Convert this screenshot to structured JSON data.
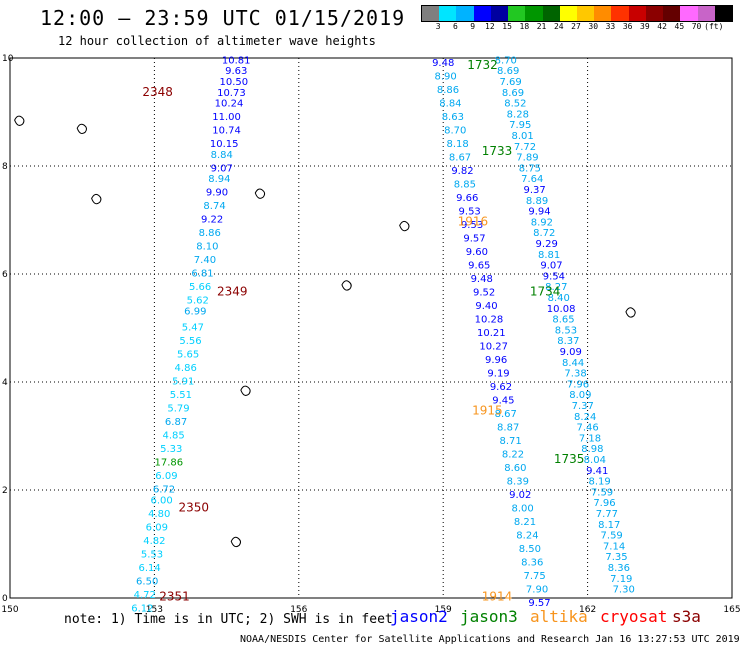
{
  "header": {
    "title": "12:00 — 23:59 UTC 01/15/2019",
    "subtitle": "12 hour collection of altimeter wave heights"
  },
  "colorbar": {
    "colors": [
      "#7f7f7f",
      "#00e5ff",
      "#00b3ff",
      "#0000ff",
      "#0000a0",
      "#22c822",
      "#009600",
      "#006400",
      "#ffff00",
      "#ffc800",
      "#ff8c00",
      "#ff3200",
      "#c80000",
      "#8b0000",
      "#640000",
      "#ff69ff",
      "#c864c8",
      "#000000"
    ],
    "labels": [
      "3",
      "6",
      "9",
      "12",
      "15",
      "18",
      "21",
      "24",
      "27",
      "30",
      "33",
      "36",
      "39",
      "42",
      "45",
      "70",
      "(ft)"
    ]
  },
  "axes": {
    "x_ticks": [
      "150",
      "153",
      "156",
      "159",
      "162",
      "165"
    ],
    "y_ticks": [
      "0",
      "2",
      "4",
      "6",
      "8",
      "10"
    ]
  },
  "time_labels": [
    {
      "text": "2348",
      "color": "#8b0000",
      "lon": 152.75,
      "lat": 9.3
    },
    {
      "text": "2349",
      "color": "#8b0000",
      "lon": 154.3,
      "lat": 5.6
    },
    {
      "text": "2350",
      "color": "#8b0000",
      "lon": 153.5,
      "lat": 1.6
    },
    {
      "text": "2351",
      "color": "#8b0000",
      "lon": 153.1,
      "lat": -0.05
    },
    {
      "text": "1732",
      "color": "#008000",
      "lon": 159.5,
      "lat": 9.8
    },
    {
      "text": "1733",
      "color": "#008000",
      "lon": 159.8,
      "lat": 8.2
    },
    {
      "text": "1734",
      "color": "#008000",
      "lon": 160.8,
      "lat": 5.6
    },
    {
      "text": "1735",
      "color": "#008000",
      "lon": 161.3,
      "lat": 2.5
    },
    {
      "text": "1916",
      "color": "#f7941d",
      "lon": 159.3,
      "lat": 6.9
    },
    {
      "text": "1915",
      "color": "#f7941d",
      "lon": 159.6,
      "lat": 3.4
    },
    {
      "text": "1914",
      "color": "#f7941d",
      "lon": 159.8,
      "lat": -0.05
    }
  ],
  "tracks": [
    {
      "name": "track-west",
      "points": [
        {
          "v": "10.81",
          "lon": 154.7,
          "lat": 9.9
        },
        {
          "v": "9.63",
          "lon": 154.7,
          "lat": 9.7
        },
        {
          "v": "10.50",
          "lon": 154.65,
          "lat": 9.5
        },
        {
          "v": "10.73",
          "lon": 154.6,
          "lat": 9.3
        },
        {
          "v": "10.24",
          "lon": 154.55,
          "lat": 9.1
        },
        {
          "v": "11.00",
          "lon": 154.5,
          "lat": 8.85
        },
        {
          "v": "10.74",
          "lon": 154.5,
          "lat": 8.6
        },
        {
          "v": "10.15",
          "lon": 154.45,
          "lat": 8.35
        },
        {
          "v": "8.84",
          "lon": 154.4,
          "lat": 8.15
        },
        {
          "v": "9.07",
          "lon": 154.4,
          "lat": 7.9
        },
        {
          "v": "8.94",
          "lon": 154.35,
          "lat": 7.7
        },
        {
          "v": "9.90",
          "lon": 154.3,
          "lat": 7.45
        },
        {
          "v": "8.74",
          "lon": 154.25,
          "lat": 7.2
        },
        {
          "v": "9.22",
          "lon": 154.2,
          "lat": 6.95
        },
        {
          "v": "8.86",
          "lon": 154.15,
          "lat": 6.7
        },
        {
          "v": "8.10",
          "lon": 154.1,
          "lat": 6.45
        },
        {
          "v": "7.40",
          "lon": 154.05,
          "lat": 6.2
        },
        {
          "v": "6.81",
          "lon": 154.0,
          "lat": 5.95
        },
        {
          "v": "5.66",
          "lon": 153.95,
          "lat": 5.7
        },
        {
          "v": "5.62",
          "lon": 153.9,
          "lat": 5.45
        },
        {
          "v": "6.99",
          "lon": 153.85,
          "lat": 5.25
        },
        {
          "v": "5.47",
          "lon": 153.8,
          "lat": 4.95
        },
        {
          "v": "5.56",
          "lon": 153.75,
          "lat": 4.7
        },
        {
          "v": "5.65",
          "lon": 153.7,
          "lat": 4.45
        },
        {
          "v": "4.86",
          "lon": 153.65,
          "lat": 4.2
        },
        {
          "v": "5.91",
          "lon": 153.6,
          "lat": 3.95
        },
        {
          "v": "5.51",
          "lon": 153.55,
          "lat": 3.7
        },
        {
          "v": "5.79",
          "lon": 153.5,
          "lat": 3.45
        },
        {
          "v": "6.87",
          "lon": 153.45,
          "lat": 3.2
        },
        {
          "v": "4.85",
          "lon": 153.4,
          "lat": 2.95
        },
        {
          "v": "5.33",
          "lon": 153.35,
          "lat": 2.7
        },
        {
          "v": "17.86",
          "lon": 153.3,
          "lat": 2.45
        },
        {
          "v": "6.09",
          "lon": 153.25,
          "lat": 2.2
        },
        {
          "v": "6.72",
          "lon": 153.2,
          "lat": 1.95
        },
        {
          "v": "6.00",
          "lon": 153.15,
          "lat": 1.75
        },
        {
          "v": "4.80",
          "lon": 153.1,
          "lat": 1.5
        },
        {
          "v": "6.09",
          "lon": 153.05,
          "lat": 1.25
        },
        {
          "v": "4.82",
          "lon": 153.0,
          "lat": 1.0
        },
        {
          "v": "5.53",
          "lon": 152.95,
          "lat": 0.75
        },
        {
          "v": "6.14",
          "lon": 152.9,
          "lat": 0.5
        },
        {
          "v": "6.50",
          "lon": 152.85,
          "lat": 0.25
        },
        {
          "v": "4.72",
          "lon": 152.8,
          "lat": 0.0
        },
        {
          "v": "6.12",
          "lon": 152.75,
          "lat": -0.25
        }
      ]
    },
    {
      "name": "track-middle",
      "points": [
        {
          "v": "9.48",
          "lon": 159.0,
          "lat": 9.85
        },
        {
          "v": "8.90",
          "lon": 159.05,
          "lat": 9.6
        },
        {
          "v": "8.86",
          "lon": 159.1,
          "lat": 9.35
        },
        {
          "v": "8.84",
          "lon": 159.15,
          "lat": 9.1
        },
        {
          "v": "8.63",
          "lon": 159.2,
          "lat": 8.85
        },
        {
          "v": "8.70",
          "lon": 159.25,
          "lat": 8.6
        },
        {
          "v": "8.18",
          "lon": 159.3,
          "lat": 8.35
        },
        {
          "v": "8.67",
          "lon": 159.35,
          "lat": 8.1
        },
        {
          "v": "9.82",
          "lon": 159.4,
          "lat": 7.85
        },
        {
          "v": "8.85",
          "lon": 159.45,
          "lat": 7.6
        },
        {
          "v": "9.66",
          "lon": 159.5,
          "lat": 7.35
        },
        {
          "v": "9.53",
          "lon": 159.55,
          "lat": 7.1
        },
        {
          "v": "9.53",
          "lon": 159.6,
          "lat": 6.85
        },
        {
          "v": "9.57",
          "lon": 159.65,
          "lat": 6.6
        },
        {
          "v": "9.60",
          "lon": 159.7,
          "lat": 6.35
        },
        {
          "v": "9.65",
          "lon": 159.75,
          "lat": 6.1
        },
        {
          "v": "9.48",
          "lon": 159.8,
          "lat": 5.85
        },
        {
          "v": "9.52",
          "lon": 159.85,
          "lat": 5.6
        },
        {
          "v": "9.40",
          "lon": 159.9,
          "lat": 5.35
        },
        {
          "v": "10.28",
          "lon": 159.95,
          "lat": 5.1
        },
        {
          "v": "10.21",
          "lon": 160.0,
          "lat": 4.85
        },
        {
          "v": "10.27",
          "lon": 160.05,
          "lat": 4.6
        },
        {
          "v": "9.96",
          "lon": 160.1,
          "lat": 4.35
        },
        {
          "v": "9.19",
          "lon": 160.15,
          "lat": 4.1
        },
        {
          "v": "9.62",
          "lon": 160.2,
          "lat": 3.85
        },
        {
          "v": "9.45",
          "lon": 160.25,
          "lat": 3.6
        },
        {
          "v": "8.67",
          "lon": 160.3,
          "lat": 3.35
        },
        {
          "v": "8.87",
          "lon": 160.35,
          "lat": 3.1
        },
        {
          "v": "8.71",
          "lon": 160.4,
          "lat": 2.85
        },
        {
          "v": "8.22",
          "lon": 160.45,
          "lat": 2.6
        },
        {
          "v": "8.60",
          "lon": 160.5,
          "lat": 2.35
        },
        {
          "v": "8.39",
          "lon": 160.55,
          "lat": 2.1
        },
        {
          "v": "9.02",
          "lon": 160.6,
          "lat": 1.85
        },
        {
          "v": "8.00",
          "lon": 160.65,
          "lat": 1.6
        },
        {
          "v": "8.21",
          "lon": 160.7,
          "lat": 1.35
        },
        {
          "v": "8.24",
          "lon": 160.75,
          "lat": 1.1
        },
        {
          "v": "8.50",
          "lon": 160.8,
          "lat": 0.85
        },
        {
          "v": "8.36",
          "lon": 160.85,
          "lat": 0.6
        },
        {
          "v": "7.75",
          "lon": 160.9,
          "lat": 0.35
        },
        {
          "v": "7.90",
          "lon": 160.95,
          "lat": 0.1
        },
        {
          "v": "9.57",
          "lon": 161.0,
          "lat": -0.15
        }
      ]
    },
    {
      "name": "track-east",
      "points": [
        {
          "v": "8.70",
          "lon": 160.3,
          "lat": 9.9
        },
        {
          "v": "8.69",
          "lon": 160.35,
          "lat": 9.7
        },
        {
          "v": "7.69",
          "lon": 160.4,
          "lat": 9.5
        },
        {
          "v": "8.69",
          "lon": 160.45,
          "lat": 9.3
        },
        {
          "v": "8.52",
          "lon": 160.5,
          "lat": 9.1
        },
        {
          "v": "8.28",
          "lon": 160.55,
          "lat": 8.9
        },
        {
          "v": "7.95",
          "lon": 160.6,
          "lat": 8.7
        },
        {
          "v": "8.01",
          "lon": 160.65,
          "lat": 8.5
        },
        {
          "v": "7.72",
          "lon": 160.7,
          "lat": 8.3
        },
        {
          "v": "7.89",
          "lon": 160.75,
          "lat": 8.1
        },
        {
          "v": "8.75",
          "lon": 160.8,
          "lat": 7.9
        },
        {
          "v": "7.64",
          "lon": 160.85,
          "lat": 7.7
        },
        {
          "v": "9.37",
          "lon": 160.9,
          "lat": 7.5
        },
        {
          "v": "8.89",
          "lon": 160.95,
          "lat": 7.3
        },
        {
          "v": "9.94",
          "lon": 161.0,
          "lat": 7.1
        },
        {
          "v": "8.92",
          "lon": 161.05,
          "lat": 6.9
        },
        {
          "v": "8.72",
          "lon": 161.1,
          "lat": 6.7
        },
        {
          "v": "9.29",
          "lon": 161.15,
          "lat": 6.5
        },
        {
          "v": "8.81",
          "lon": 161.2,
          "lat": 6.3
        },
        {
          "v": "9.07",
          "lon": 161.25,
          "lat": 6.1
        },
        {
          "v": "9.54",
          "lon": 161.3,
          "lat": 5.9
        },
        {
          "v": "8.27",
          "lon": 161.35,
          "lat": 5.7
        },
        {
          "v": "8.40",
          "lon": 161.4,
          "lat": 5.5
        },
        {
          "v": "10.08",
          "lon": 161.45,
          "lat": 5.3
        },
        {
          "v": "8.65",
          "lon": 161.5,
          "lat": 5.1
        },
        {
          "v": "8.53",
          "lon": 161.55,
          "lat": 4.9
        },
        {
          "v": "8.37",
          "lon": 161.6,
          "lat": 4.7
        },
        {
          "v": "9.09",
          "lon": 161.65,
          "lat": 4.5
        },
        {
          "v": "8.44",
          "lon": 161.7,
          "lat": 4.3
        },
        {
          "v": "7.38",
          "lon": 161.75,
          "lat": 4.1
        },
        {
          "v": "7.96",
          "lon": 161.8,
          "lat": 3.9
        },
        {
          "v": "8.09",
          "lon": 161.85,
          "lat": 3.7
        },
        {
          "v": "7.37",
          "lon": 161.9,
          "lat": 3.5
        },
        {
          "v": "8.24",
          "lon": 161.95,
          "lat": 3.3
        },
        {
          "v": "7.46",
          "lon": 162.0,
          "lat": 3.1
        },
        {
          "v": "7.18",
          "lon": 162.05,
          "lat": 2.9
        },
        {
          "v": "8.98",
          "lon": 162.1,
          "lat": 2.7
        },
        {
          "v": "8.04",
          "lon": 162.15,
          "lat": 2.5
        },
        {
          "v": "9.41",
          "lon": 162.2,
          "lat": 2.3
        },
        {
          "v": "8.19",
          "lon": 162.25,
          "lat": 2.1
        },
        {
          "v": "7.59",
          "lon": 162.3,
          "lat": 1.9
        },
        {
          "v": "7.96",
          "lon": 162.35,
          "lat": 1.7
        },
        {
          "v": "7.77",
          "lon": 162.4,
          "lat": 1.5
        },
        {
          "v": "8.17",
          "lon": 162.45,
          "lat": 1.3
        },
        {
          "v": "7.59",
          "lon": 162.5,
          "lat": 1.1
        },
        {
          "v": "7.14",
          "lon": 162.55,
          "lat": 0.9
        },
        {
          "v": "7.35",
          "lon": 162.6,
          "lat": 0.7
        },
        {
          "v": "8.36",
          "lon": 162.65,
          "lat": 0.5
        },
        {
          "v": "7.19",
          "lon": 162.7,
          "lat": 0.3
        },
        {
          "v": "7.30",
          "lon": 162.75,
          "lat": 0.1
        }
      ]
    }
  ],
  "islands": [
    {
      "name": "island-west-1",
      "lon": 150.2,
      "lat": 8.85
    },
    {
      "name": "island-west-2",
      "lon": 151.5,
      "lat": 8.7
    },
    {
      "name": "island-chuuk",
      "lon": 151.8,
      "lat": 7.4
    },
    {
      "name": "island-pohnpei-a",
      "lon": 155.2,
      "lat": 7.5
    },
    {
      "name": "island-pohnpei-b",
      "lon": 158.2,
      "lat": 6.9
    },
    {
      "name": "island-atoll-c",
      "lon": 157.0,
      "lat": 5.8
    },
    {
      "name": "island-kosrae",
      "lon": 162.9,
      "lat": 5.3
    },
    {
      "name": "island-nukuoro",
      "lon": 154.9,
      "lat": 3.85
    },
    {
      "name": "island-kapinga",
      "lon": 154.7,
      "lat": 1.05
    }
  ],
  "note": "note: 1) Time is in UTC; 2) SWH is in feet",
  "satellites": [
    {
      "name": "jason2",
      "color": "#0000ff"
    },
    {
      "name": "jason3",
      "color": "#008000"
    },
    {
      "name": "altika",
      "color": "#f7941d"
    },
    {
      "name": "cryosat",
      "color": "#ff0000"
    },
    {
      "name": "s3a",
      "color": "#8b0000"
    }
  ],
  "footer": "NOAA/NESDIS Center for Satellite Applications and Research   Jan 16 13:27:53 UTC 2019"
}
